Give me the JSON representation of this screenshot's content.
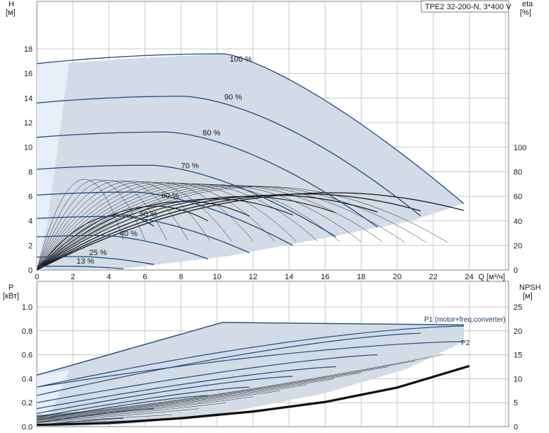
{
  "chart_data": [
    {
      "type": "line",
      "title": "TPE2 32-200-N, 3*400 V",
      "left_axis": {
        "label": "H",
        "unit": "[м]",
        "ticks": [
          0,
          2,
          4,
          6,
          8,
          10,
          12,
          14,
          16,
          18
        ],
        "range": [
          0,
          20
        ]
      },
      "right_axis": {
        "label": "eta",
        "unit": "[%]",
        "ticks": [
          0,
          20,
          40,
          60,
          80,
          100
        ],
        "range": [
          0,
          100
        ]
      },
      "x_axis": {
        "label": "Q [м³/ч]",
        "ticks": [
          0,
          2,
          4,
          6,
          8,
          10,
          12,
          14,
          16,
          18,
          20,
          22,
          24
        ],
        "range": [
          0,
          26
        ]
      },
      "grid": true,
      "envelope_color": "#d2dbe6",
      "curve_color": "#1f4e82",
      "speed_curves": [
        {
          "label": "100 %",
          "h0": 16.8,
          "q_end": 23.7,
          "h_end": 5.4,
          "q_knee": 10.4,
          "h_knee": 17.6
        },
        {
          "label": "90 %",
          "h0": 13.6,
          "q_end": 21.3,
          "h_end": 4.4
        },
        {
          "label": "80 %",
          "h0": 10.8,
          "q_end": 18.9,
          "h_end": 3.5
        },
        {
          "label": "70 %",
          "h0": 8.2,
          "q_end": 16.6,
          "h_end": 2.7
        },
        {
          "label": "60 %",
          "h0": 6.1,
          "q_end": 14.2,
          "h_end": 2.0
        },
        {
          "label": "50 %",
          "h0": 4.2,
          "q_end": 11.8,
          "h_end": 1.4
        },
        {
          "label": "40 %",
          "h0": 2.7,
          "q_end": 9.5,
          "h_end": 0.9
        },
        {
          "label": "25 %",
          "h0": 1.05,
          "q_end": 6.5,
          "h_end": 0.45
        },
        {
          "label": "13 %",
          "h0": 0.3,
          "q_end": 4.8,
          "h_end": 0.1
        }
      ],
      "eta_curves": [
        {
          "q_end": 23.7,
          "eta_peak": 63,
          "q_peak": 16.5
        },
        {
          "q_end": 21.3,
          "eta_peak": 62,
          "q_peak": 14.9
        },
        {
          "q_end": 18.9,
          "eta_peak": 61,
          "q_peak": 13.2
        },
        {
          "q_end": 16.6,
          "eta_peak": 60,
          "q_peak": 11.6
        },
        {
          "q_end": 14.2,
          "eta_peak": 58,
          "q_peak": 9.9
        },
        {
          "q_end": 11.8,
          "eta_peak": 56,
          "q_peak": 8.3
        },
        {
          "q_end": 9.5,
          "eta_peak": 52,
          "q_peak": 6.6
        },
        {
          "q_end": 6.5,
          "eta_peak": 45,
          "q_peak": 4.6
        }
      ]
    },
    {
      "type": "line",
      "left_axis": {
        "label": "P",
        "unit": "[кВт]",
        "ticks": [
          0.0,
          0.2,
          0.4,
          0.6,
          0.8,
          1.0
        ],
        "range": [
          0,
          1.1
        ]
      },
      "right_axis": {
        "label": "NPSH",
        "unit": "[м]",
        "ticks": [
          0,
          5,
          10,
          15,
          20,
          25
        ],
        "range": [
          0,
          27.5
        ]
      },
      "x_axis": {
        "range": [
          0,
          26
        ]
      },
      "series_labels": {
        "p1": "P1 (motor+freq.converter)",
        "p2": "P2"
      },
      "p1_curve": {
        "p0": 0.43,
        "q_knee": 10.3,
        "p_knee": 0.87,
        "q_end": 23.7,
        "p_end": 0.85
      },
      "p2_curve": {
        "p0": 0.33,
        "q_end": 23.7,
        "p_end": 0.71
      },
      "npsh_curve": {
        "q": [
          0,
          4,
          8,
          12,
          16,
          20,
          24
        ],
        "npsh": [
          0.2,
          0.6,
          1.6,
          3.0,
          5.0,
          8.0,
          12.5
        ]
      }
    }
  ]
}
